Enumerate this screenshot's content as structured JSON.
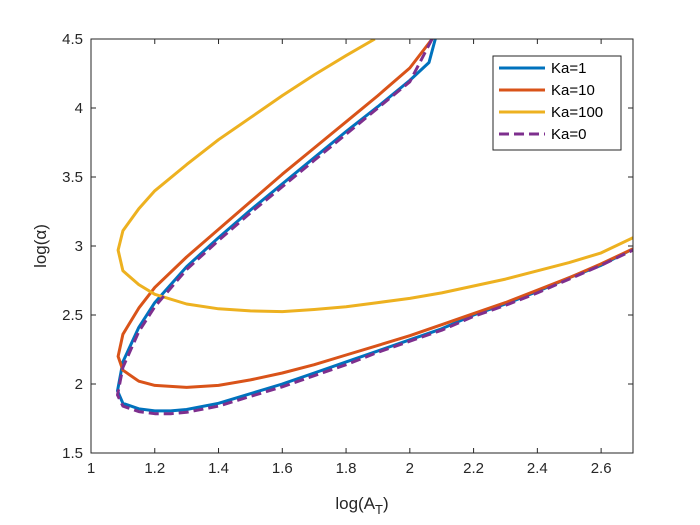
{
  "chart_data": {
    "type": "line",
    "xlabel": "log(A",
    "xlabel_sub": "T",
    "xlabel_close": ")",
    "ylabel": "log(α)",
    "xlim": [
      1,
      2.7
    ],
    "ylim": [
      1.5,
      4.5
    ],
    "xticks": [
      1,
      1.2,
      1.4,
      1.6,
      1.8,
      2,
      2.2,
      2.4,
      2.6
    ],
    "xtick_labels": [
      "1",
      "1.2",
      "1.4",
      "1.6",
      "1.8",
      "2",
      "2.2",
      "2.4",
      "2.6"
    ],
    "yticks": [
      1.5,
      2,
      2.5,
      3,
      3.5,
      4,
      4.5
    ],
    "ytick_labels": [
      "1.5",
      "2",
      "2.5",
      "3",
      "3.5",
      "4",
      "4.5"
    ],
    "grid": false,
    "legend_position": "top-right",
    "series": [
      {
        "name": "Ka=1",
        "color": "#0072BD",
        "dash": "solid",
        "upper": [
          [
            1.083,
            1.95
          ],
          [
            1.1,
            2.16
          ],
          [
            1.15,
            2.41
          ],
          [
            1.2,
            2.59
          ],
          [
            1.3,
            2.85
          ],
          [
            1.4,
            3.06
          ],
          [
            1.5,
            3.26
          ],
          [
            1.6,
            3.45
          ],
          [
            1.7,
            3.64
          ],
          [
            1.8,
            3.83
          ],
          [
            1.9,
            4.01
          ],
          [
            2.0,
            4.2
          ],
          [
            2.06,
            4.33
          ],
          [
            2.08,
            4.5
          ]
        ],
        "lower": [
          [
            1.083,
            1.95
          ],
          [
            1.1,
            1.86
          ],
          [
            1.15,
            1.82
          ],
          [
            1.2,
            1.805
          ],
          [
            1.25,
            1.805
          ],
          [
            1.3,
            1.815
          ],
          [
            1.4,
            1.86
          ],
          [
            1.5,
            1.93
          ],
          [
            1.6,
            2.0
          ],
          [
            1.7,
            2.08
          ],
          [
            1.8,
            2.16
          ],
          [
            1.9,
            2.24
          ],
          [
            2.0,
            2.32
          ],
          [
            2.1,
            2.4
          ],
          [
            2.2,
            2.5
          ],
          [
            2.3,
            2.58
          ],
          [
            2.4,
            2.67
          ],
          [
            2.5,
            2.77
          ],
          [
            2.6,
            2.86
          ],
          [
            2.7,
            2.98
          ]
        ]
      },
      {
        "name": "Ka=10",
        "color": "#D95319",
        "dash": "solid",
        "upper": [
          [
            1.085,
            2.2
          ],
          [
            1.1,
            2.36
          ],
          [
            1.15,
            2.55
          ],
          [
            1.2,
            2.7
          ],
          [
            1.3,
            2.92
          ],
          [
            1.4,
            3.12
          ],
          [
            1.5,
            3.32
          ],
          [
            1.6,
            3.52
          ],
          [
            1.7,
            3.71
          ],
          [
            1.8,
            3.9
          ],
          [
            1.9,
            4.09
          ],
          [
            2.0,
            4.29
          ],
          [
            2.07,
            4.5
          ]
        ],
        "lower": [
          [
            1.085,
            2.2
          ],
          [
            1.1,
            2.1
          ],
          [
            1.15,
            2.02
          ],
          [
            1.2,
            1.99
          ],
          [
            1.3,
            1.975
          ],
          [
            1.4,
            1.99
          ],
          [
            1.5,
            2.03
          ],
          [
            1.6,
            2.08
          ],
          [
            1.7,
            2.14
          ],
          [
            1.8,
            2.21
          ],
          [
            1.9,
            2.28
          ],
          [
            2.0,
            2.35
          ],
          [
            2.1,
            2.43
          ],
          [
            2.2,
            2.51
          ],
          [
            2.3,
            2.59
          ],
          [
            2.4,
            2.68
          ],
          [
            2.5,
            2.77
          ],
          [
            2.6,
            2.87
          ],
          [
            2.7,
            2.98
          ]
        ]
      },
      {
        "name": "Ka=100",
        "color": "#EDB120",
        "dash": "solid",
        "upper": [
          [
            1.085,
            2.97
          ],
          [
            1.1,
            3.11
          ],
          [
            1.15,
            3.27
          ],
          [
            1.2,
            3.4
          ],
          [
            1.3,
            3.59
          ],
          [
            1.4,
            3.77
          ],
          [
            1.5,
            3.93
          ],
          [
            1.6,
            4.09
          ],
          [
            1.7,
            4.24
          ],
          [
            1.8,
            4.38
          ],
          [
            1.89,
            4.5
          ]
        ],
        "lower": [
          [
            1.085,
            2.97
          ],
          [
            1.1,
            2.82
          ],
          [
            1.15,
            2.72
          ],
          [
            1.2,
            2.65
          ],
          [
            1.3,
            2.58
          ],
          [
            1.4,
            2.545
          ],
          [
            1.5,
            2.53
          ],
          [
            1.6,
            2.525
          ],
          [
            1.7,
            2.54
          ],
          [
            1.8,
            2.56
          ],
          [
            1.9,
            2.59
          ],
          [
            2.0,
            2.62
          ],
          [
            2.1,
            2.66
          ],
          [
            2.2,
            2.71
          ],
          [
            2.3,
            2.76
          ],
          [
            2.4,
            2.82
          ],
          [
            2.5,
            2.88
          ],
          [
            2.6,
            2.95
          ],
          [
            2.7,
            3.06
          ]
        ]
      },
      {
        "name": "Ka=0",
        "color": "#7E2F8E",
        "dash": "dashed",
        "upper": [
          [
            1.083,
            1.92
          ],
          [
            1.1,
            2.12
          ],
          [
            1.15,
            2.38
          ],
          [
            1.2,
            2.56
          ],
          [
            1.3,
            2.83
          ],
          [
            1.4,
            3.04
          ],
          [
            1.5,
            3.24
          ],
          [
            1.6,
            3.43
          ],
          [
            1.7,
            3.62
          ],
          [
            1.8,
            3.81
          ],
          [
            1.9,
            4.0
          ],
          [
            2.0,
            4.19
          ],
          [
            2.07,
            4.5
          ]
        ],
        "lower": [
          [
            1.083,
            1.92
          ],
          [
            1.1,
            1.84
          ],
          [
            1.15,
            1.8
          ],
          [
            1.2,
            1.785
          ],
          [
            1.25,
            1.785
          ],
          [
            1.3,
            1.795
          ],
          [
            1.4,
            1.84
          ],
          [
            1.5,
            1.91
          ],
          [
            1.6,
            1.98
          ],
          [
            1.7,
            2.06
          ],
          [
            1.8,
            2.14
          ],
          [
            1.9,
            2.23
          ],
          [
            2.0,
            2.31
          ],
          [
            2.1,
            2.39
          ],
          [
            2.2,
            2.49
          ],
          [
            2.3,
            2.57
          ],
          [
            2.4,
            2.66
          ],
          [
            2.5,
            2.76
          ],
          [
            2.6,
            2.86
          ],
          [
            2.7,
            2.97
          ]
        ]
      }
    ]
  }
}
